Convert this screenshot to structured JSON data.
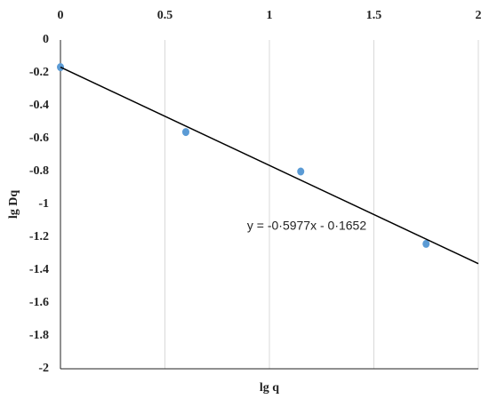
{
  "chart_data": {
    "type": "scatter",
    "x_label": "lg q",
    "y_label": "lg Dq",
    "series": [
      {
        "name": "lg Dq",
        "color": "#5b9bd5",
        "x": [
          0,
          0.6,
          1.15,
          1.75
        ],
        "values": [
          -0.165,
          -0.56,
          -0.8,
          -1.24
        ]
      }
    ],
    "trendline": {
      "slope": -0.5977,
      "intercept": -0.1652,
      "label": "y = -0·5977x - 0·1652",
      "color": "#000000"
    },
    "xlim": [
      0,
      2
    ],
    "xticks": [
      0,
      0.5,
      1,
      1.5,
      2
    ],
    "ylim": [
      -2,
      0
    ],
    "yticks": [
      0,
      -0.2,
      -0.4,
      -0.6,
      -0.8,
      -1,
      -1.2,
      -1.4,
      -1.6,
      -1.8,
      -2
    ],
    "grid": "x"
  }
}
